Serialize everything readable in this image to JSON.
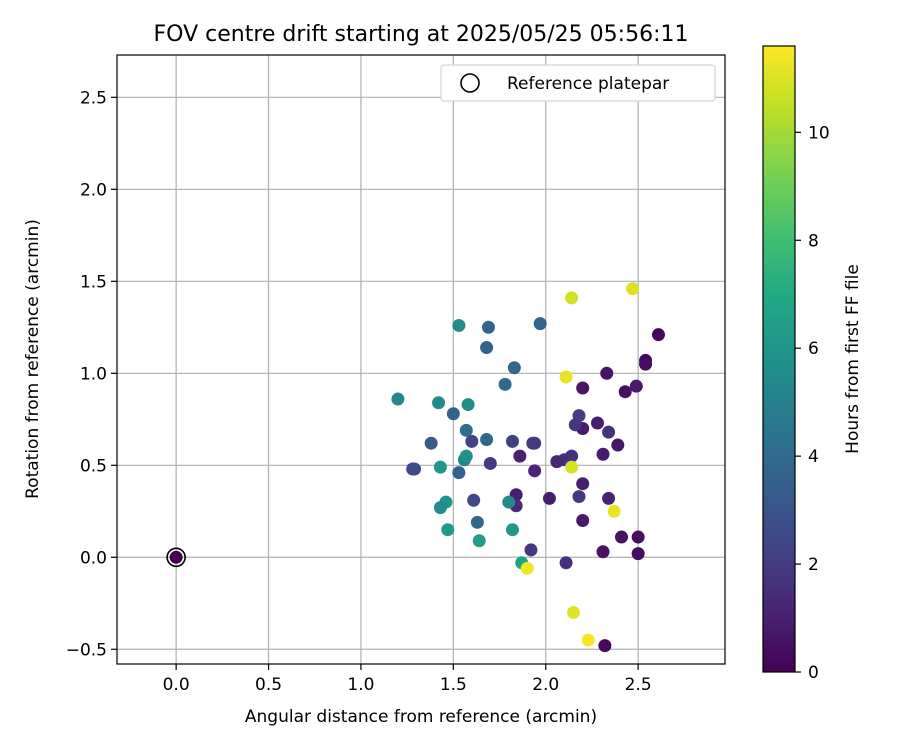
{
  "chart_data": {
    "type": "scatter",
    "title": "FOV centre drift starting at 2025/05/25 05:56:11",
    "xlabel": "Angular distance from reference (arcmin)",
    "ylabel": "Rotation from reference (arcmin)",
    "xlim": [
      -0.32,
      2.97
    ],
    "ylim": [
      -0.58,
      2.73
    ],
    "xticks": [
      0.0,
      0.5,
      1.0,
      1.5,
      2.0,
      2.5
    ],
    "xtick_labels": [
      "0.0",
      "0.5",
      "1.0",
      "1.5",
      "2.0",
      "2.5"
    ],
    "yticks": [
      -0.5,
      0.0,
      0.5,
      1.0,
      1.5,
      2.0,
      2.5
    ],
    "ytick_labels": [
      "−0.5",
      "0.0",
      "0.5",
      "1.0",
      "1.5",
      "2.0",
      "2.5"
    ],
    "grid": true,
    "legend": {
      "position": "top-right",
      "entries": [
        "Reference platepar"
      ]
    },
    "reference_point": {
      "x": 0.0,
      "y": 0.0
    },
    "colorbar": {
      "label": "Hours from first FF file",
      "colormap": "viridis",
      "range": [
        0,
        11.6
      ],
      "ticks": [
        0,
        2,
        4,
        6,
        8,
        10
      ],
      "tick_labels": [
        "0",
        "2",
        "4",
        "6",
        "8",
        "10"
      ]
    },
    "points": [
      {
        "x": 2.61,
        "y": 1.21,
        "c": 0.2
      },
      {
        "x": 2.54,
        "y": 1.07,
        "c": 0.3
      },
      {
        "x": 2.54,
        "y": 1.05,
        "c": 0.4
      },
      {
        "x": 2.33,
        "y": 1.0,
        "c": 0.6
      },
      {
        "x": 2.49,
        "y": 0.93,
        "c": 0.8
      },
      {
        "x": 2.43,
        "y": 0.9,
        "c": 0.5
      },
      {
        "x": 2.2,
        "y": 0.92,
        "c": 0.7
      },
      {
        "x": 2.28,
        "y": 0.73,
        "c": 1.0
      },
      {
        "x": 2.2,
        "y": 0.7,
        "c": 0.9
      },
      {
        "x": 2.39,
        "y": 0.61,
        "c": 0.7
      },
      {
        "x": 2.34,
        "y": 0.68,
        "c": 1.7
      },
      {
        "x": 2.18,
        "y": 0.77,
        "c": 2.1
      },
      {
        "x": 2.16,
        "y": 0.72,
        "c": 1.8
      },
      {
        "x": 2.31,
        "y": 0.56,
        "c": 0.9
      },
      {
        "x": 2.14,
        "y": 0.55,
        "c": 1.6
      },
      {
        "x": 2.1,
        "y": 0.53,
        "c": 1.5
      },
      {
        "x": 2.06,
        "y": 0.52,
        "c": 1.3
      },
      {
        "x": 2.2,
        "y": 0.4,
        "c": 1.0
      },
      {
        "x": 2.18,
        "y": 0.33,
        "c": 1.9
      },
      {
        "x": 2.34,
        "y": 0.32,
        "c": 1.1
      },
      {
        "x": 2.02,
        "y": 0.32,
        "c": 1.0
      },
      {
        "x": 2.2,
        "y": 0.2,
        "c": 0.8
      },
      {
        "x": 2.41,
        "y": 0.11,
        "c": 0.6
      },
      {
        "x": 2.5,
        "y": 0.11,
        "c": 0.5
      },
      {
        "x": 2.5,
        "y": 0.02,
        "c": 0.4
      },
      {
        "x": 2.31,
        "y": 0.03,
        "c": 0.6
      },
      {
        "x": 2.32,
        "y": -0.48,
        "c": 0.3
      },
      {
        "x": 2.11,
        "y": -0.03,
        "c": 1.6
      },
      {
        "x": 1.94,
        "y": 0.47,
        "c": 1.2
      },
      {
        "x": 1.93,
        "y": 0.62,
        "c": 1.8
      },
      {
        "x": 1.94,
        "y": 0.62,
        "c": 2.0
      },
      {
        "x": 1.86,
        "y": 0.55,
        "c": 1.1
      },
      {
        "x": 1.82,
        "y": 0.63,
        "c": 2.2
      },
      {
        "x": 1.84,
        "y": 0.34,
        "c": 1.0
      },
      {
        "x": 1.84,
        "y": 0.28,
        "c": 1.4
      },
      {
        "x": 1.92,
        "y": 0.04,
        "c": 1.9
      },
      {
        "x": 1.7,
        "y": 0.51,
        "c": 2.0
      },
      {
        "x": 1.6,
        "y": 0.63,
        "c": 2.3
      },
      {
        "x": 1.61,
        "y": 0.31,
        "c": 2.5
      },
      {
        "x": 1.68,
        "y": 0.64,
        "c": 3.8
      },
      {
        "x": 1.57,
        "y": 0.69,
        "c": 4.1
      },
      {
        "x": 1.5,
        "y": 0.78,
        "c": 3.6
      },
      {
        "x": 1.38,
        "y": 0.62,
        "c": 3.3
      },
      {
        "x": 1.28,
        "y": 0.48,
        "c": 2.4
      },
      {
        "x": 1.29,
        "y": 0.48,
        "c": 2.6
      },
      {
        "x": 1.53,
        "y": 0.46,
        "c": 3.5
      },
      {
        "x": 1.63,
        "y": 0.19,
        "c": 3.9
      },
      {
        "x": 1.69,
        "y": 1.25,
        "c": 3.6
      },
      {
        "x": 1.68,
        "y": 1.14,
        "c": 3.5
      },
      {
        "x": 1.97,
        "y": 1.27,
        "c": 3.7
      },
      {
        "x": 1.83,
        "y": 1.03,
        "c": 3.9
      },
      {
        "x": 1.78,
        "y": 0.94,
        "c": 4.0
      },
      {
        "x": 1.53,
        "y": 1.26,
        "c": 5.5
      },
      {
        "x": 1.58,
        "y": 0.83,
        "c": 5.6
      },
      {
        "x": 1.42,
        "y": 0.84,
        "c": 5.4
      },
      {
        "x": 1.2,
        "y": 0.86,
        "c": 5.3
      },
      {
        "x": 1.56,
        "y": 0.53,
        "c": 5.2
      },
      {
        "x": 1.57,
        "y": 0.55,
        "c": 5.8
      },
      {
        "x": 1.43,
        "y": 0.49,
        "c": 6.1
      },
      {
        "x": 1.8,
        "y": 0.3,
        "c": 5.4
      },
      {
        "x": 1.46,
        "y": 0.3,
        "c": 5.9
      },
      {
        "x": 1.43,
        "y": 0.27,
        "c": 5.6
      },
      {
        "x": 1.47,
        "y": 0.15,
        "c": 6.3
      },
      {
        "x": 1.82,
        "y": 0.15,
        "c": 6.2
      },
      {
        "x": 1.64,
        "y": 0.09,
        "c": 6.4
      },
      {
        "x": 1.87,
        "y": -0.03,
        "c": 6.7
      },
      {
        "x": 2.14,
        "y": 1.41,
        "c": 10.8
      },
      {
        "x": 2.47,
        "y": 1.46,
        "c": 11.0
      },
      {
        "x": 2.11,
        "y": 0.98,
        "c": 11.2
      },
      {
        "x": 2.14,
        "y": 0.49,
        "c": 10.9
      },
      {
        "x": 2.37,
        "y": 0.25,
        "c": 11.3
      },
      {
        "x": 1.9,
        "y": -0.06,
        "c": 11.4
      },
      {
        "x": 2.15,
        "y": -0.3,
        "c": 11.1
      },
      {
        "x": 2.23,
        "y": -0.45,
        "c": 11.5
      },
      {
        "x": 0.0,
        "y": 0.0,
        "c": 0.0
      }
    ]
  }
}
